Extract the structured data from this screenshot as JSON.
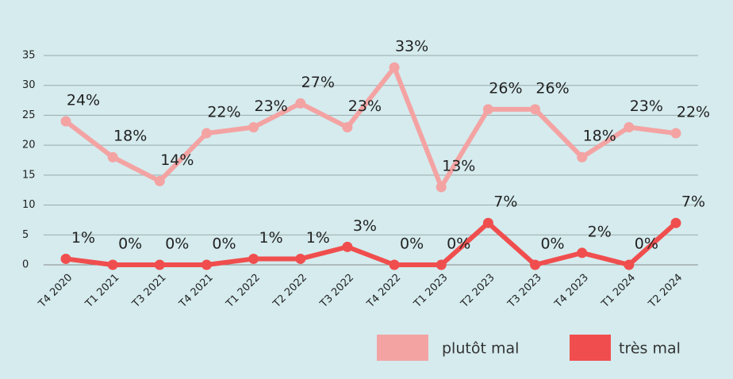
{
  "chart_data": {
    "type": "line",
    "categories": [
      "T4 2020",
      "T1 2021",
      "T3 2021",
      "T4 2021",
      "T1 2022",
      "T2 2022",
      "T3 2022",
      "T4 2022",
      "T1 2023",
      "T2 2023",
      "T3 2023",
      "T4 2023",
      "T1 2024",
      "T2 2024"
    ],
    "series": [
      {
        "name": "plutôt mal",
        "color": "#f4a3a3",
        "values": [
          24,
          18,
          14,
          22,
          23,
          27,
          23,
          33,
          13,
          26,
          26,
          18,
          23,
          22
        ],
        "value_labels": [
          "24%",
          "18%",
          "14%",
          "22%",
          "23%",
          "27%",
          "23%",
          "33%",
          "13%",
          "26%",
          "26%",
          "18%",
          "23%",
          "22%"
        ]
      },
      {
        "name": "très mal",
        "color": "#f04e4e",
        "values": [
          1,
          0,
          0,
          0,
          1,
          1,
          3,
          0,
          0,
          7,
          0,
          2,
          0,
          7
        ],
        "value_labels": [
          "1%",
          "0%",
          "0%",
          "0%",
          "1%",
          "1%",
          "3%",
          "0%",
          "0%",
          "7%",
          "0%",
          "2%",
          "0%",
          "7%"
        ]
      }
    ],
    "ylim": [
      0,
      35
    ],
    "yticks": [
      0,
      5,
      10,
      15,
      20,
      25,
      30,
      35
    ],
    "grid": true,
    "legend": "bottom-right"
  }
}
